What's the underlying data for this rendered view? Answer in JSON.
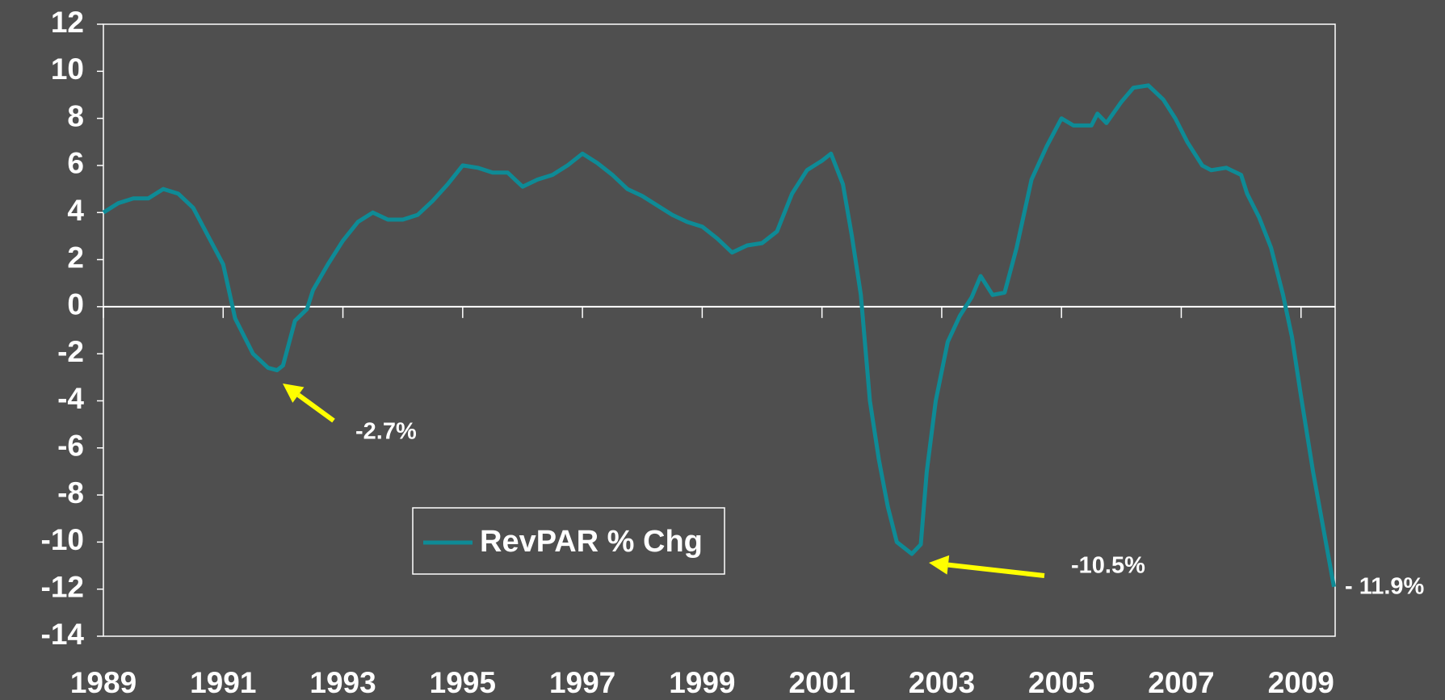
{
  "chart_data": {
    "type": "line",
    "x": [
      1989.0,
      1989.25,
      1989.5,
      1989.75,
      1990.0,
      1990.25,
      1990.5,
      1990.75,
      1991.0,
      1991.2,
      1991.4,
      1991.5,
      1991.75,
      1991.9,
      1992.0,
      1992.2,
      1992.4,
      1992.5,
      1992.75,
      1993.0,
      1993.25,
      1993.5,
      1993.75,
      1994.0,
      1994.25,
      1994.5,
      1994.75,
      1995.0,
      1995.25,
      1995.5,
      1995.75,
      1996.0,
      1996.25,
      1996.5,
      1996.75,
      1997.0,
      1997.25,
      1997.5,
      1997.75,
      1998.0,
      1998.25,
      1998.5,
      1998.75,
      1999.0,
      1999.25,
      1999.5,
      1999.75,
      2000.0,
      2000.25,
      2000.5,
      2000.75,
      2001.0,
      2001.15,
      2001.35,
      2001.5,
      2001.65,
      2001.8,
      2001.95,
      2002.1,
      2002.25,
      2002.5,
      2002.65,
      2002.75,
      2002.9,
      2003.1,
      2003.3,
      2003.5,
      2003.65,
      2003.85,
      2004.05,
      2004.25,
      2004.5,
      2004.75,
      2005.0,
      2005.2,
      2005.5,
      2005.6,
      2005.75,
      2006.0,
      2006.2,
      2006.45,
      2006.7,
      2006.9,
      2007.1,
      2007.35,
      2007.5,
      2007.75,
      2008.0,
      2008.1,
      2008.3,
      2008.5,
      2008.7,
      2008.85,
      2009.0,
      2009.2,
      2009.45,
      2009.55
    ],
    "series": [
      {
        "name": "RevPAR % Chg",
        "color": "#0e8b96",
        "values": [
          4.0,
          4.4,
          4.6,
          4.6,
          5.0,
          4.8,
          4.2,
          3.0,
          1.8,
          -0.5,
          -1.5,
          -2.0,
          -2.6,
          -2.7,
          -2.5,
          -0.6,
          -0.1,
          0.7,
          1.8,
          2.8,
          3.6,
          4.0,
          3.7,
          3.7,
          3.9,
          4.5,
          5.2,
          6.0,
          5.9,
          5.7,
          5.7,
          5.1,
          5.4,
          5.6,
          6.0,
          6.5,
          6.1,
          5.6,
          5.0,
          4.7,
          4.3,
          3.9,
          3.6,
          3.4,
          2.9,
          2.3,
          2.6,
          2.7,
          3.2,
          4.8,
          5.8,
          6.2,
          6.5,
          5.2,
          3.0,
          0.5,
          -4.0,
          -6.5,
          -8.5,
          -10.0,
          -10.5,
          -10.1,
          -7.0,
          -4.0,
          -1.5,
          -0.4,
          0.4,
          1.3,
          0.5,
          0.6,
          2.5,
          5.4,
          6.8,
          8.0,
          7.7,
          7.7,
          8.2,
          7.8,
          8.7,
          9.3,
          9.4,
          8.8,
          8.0,
          7.0,
          6.0,
          5.8,
          5.9,
          5.6,
          4.8,
          3.8,
          2.5,
          0.5,
          -1.3,
          -3.8,
          -7.0,
          -10.5,
          -11.9
        ]
      }
    ],
    "xlim": [
      1989,
      2009.57
    ],
    "xticks": [
      1989,
      1991,
      1993,
      1995,
      1997,
      1999,
      2001,
      2003,
      2005,
      2007,
      2009
    ],
    "ylim": [
      -14,
      12
    ],
    "yticks": [
      -14,
      -12,
      -10,
      -8,
      -6,
      -4,
      -2,
      0,
      2,
      4,
      6,
      8,
      10,
      12
    ],
    "annotations": [
      {
        "text": "-2.7%"
      },
      {
        "text": "-10.5%"
      },
      {
        "text": "- 11.9%"
      }
    ],
    "legend": "bottom-center"
  }
}
